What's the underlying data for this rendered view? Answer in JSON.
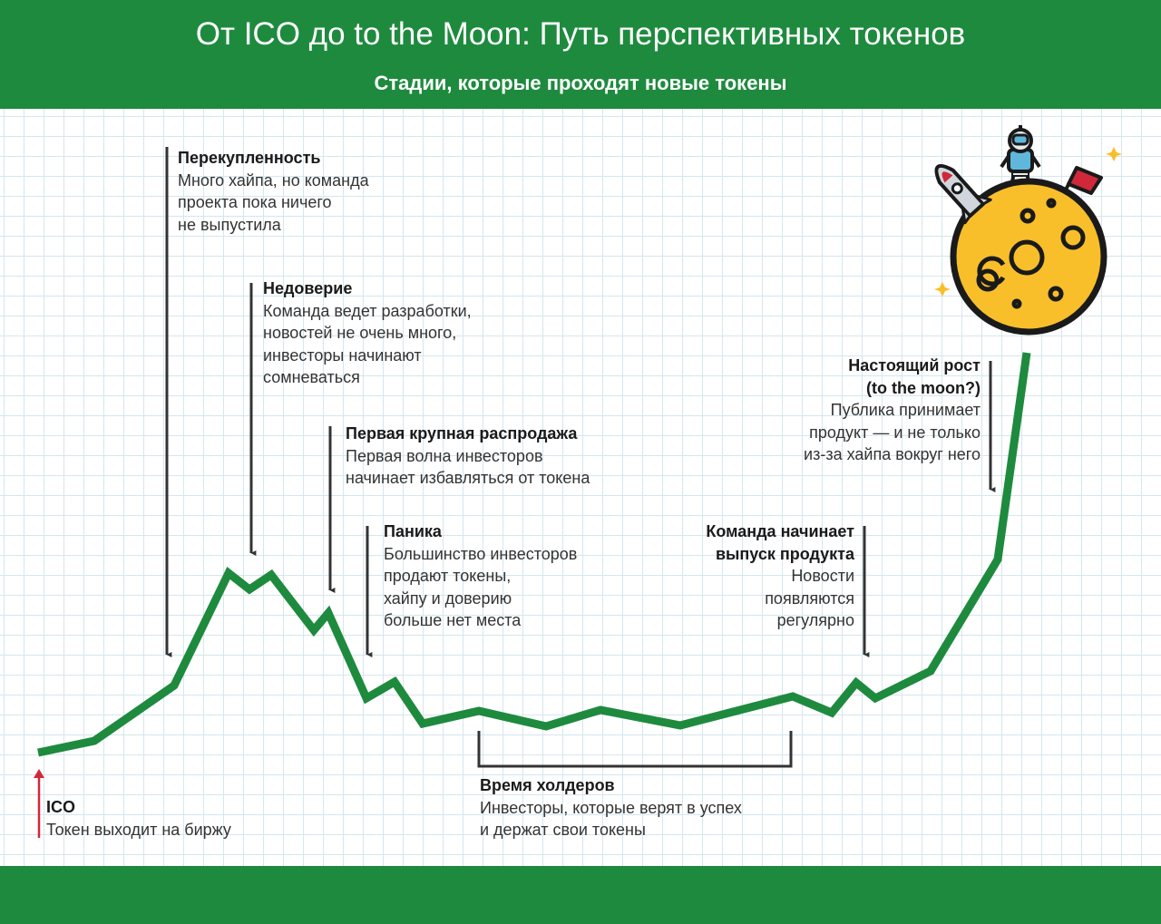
{
  "header": {
    "title": "От ICO до to the Moon: Путь перспективных токенов",
    "subtitle": "Стадии, которые проходят новые токены"
  },
  "colors": {
    "header_bg": "#1e8a3e",
    "line": "#1e8a3e",
    "moon": "#f8bf2a",
    "ico_arrow": "#d0283a",
    "grid": "#d6e6ee"
  },
  "annotations": {
    "ico": {
      "heading": "ICO",
      "body": "Токен выходит на биржу"
    },
    "overbought": {
      "heading": "Перекупленность",
      "body": "Много хайпа, но команда\nпроекта пока ничего\nне выпустила"
    },
    "distrust": {
      "heading": "Недоверие",
      "body": "Команда ведет разработки,\nновостей не очень много,\nинвесторы начинают\nсомневаться"
    },
    "first_sale": {
      "heading": "Первая крупная распродажа",
      "body": "Первая волна инвесторов\nначинает избавляться от токена"
    },
    "panic": {
      "heading": "Паника",
      "body": "Большинство инвесторов\nпродают токены,\nхайпу и доверию\nбольше нет места"
    },
    "holders": {
      "heading": "Время холдеров",
      "body": "Инвесторы, которые верят в успех\nи держат свои токены"
    },
    "release": {
      "heading": "Команда начинает\nвыпуск продукта",
      "body": "Новости\nпоявляются\nрегулярно"
    },
    "real_growth": {
      "heading": "Настоящий рост\n(to the moon?)",
      "body": "Публика принимает\nпродукт — и не только\nиз-за хайпа вокруг него"
    }
  },
  "icons": [
    "moon-icon",
    "astronaut-icon",
    "rocket-icon",
    "flag-icon",
    "sparkle-icon"
  ]
}
